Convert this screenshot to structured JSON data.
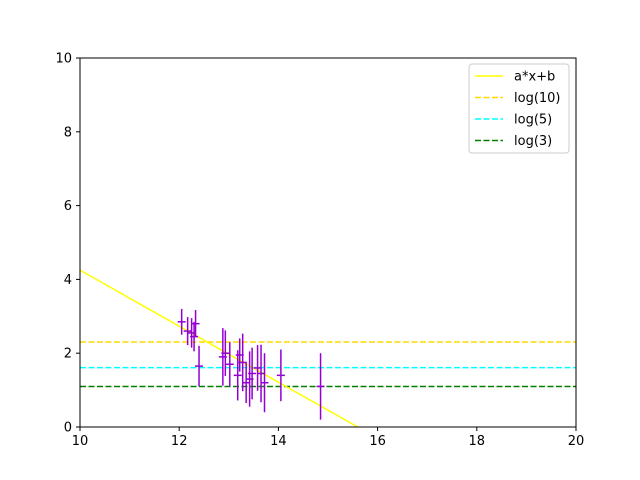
{
  "chart_data": {
    "type": "scatter",
    "xlim": [
      10,
      20
    ],
    "ylim": [
      0,
      10
    ],
    "x_ticks": [
      "10",
      "12",
      "14",
      "16",
      "18",
      "20"
    ],
    "y_ticks": [
      "0",
      "2",
      "4",
      "6",
      "8",
      "10"
    ],
    "grid": false,
    "legend_position": "top-right",
    "fit_line": {
      "name": "a*x+b",
      "color": "#ffff00",
      "x": [
        10.0,
        15.6
      ],
      "y": [
        4.25,
        0.0
      ]
    },
    "hlines": [
      {
        "name": "log(10)",
        "value": 2.3026,
        "color": "#ffd700",
        "style": "dashed"
      },
      {
        "name": "log(5)",
        "value": 1.6094,
        "color": "#00ffff",
        "style": "dashed"
      },
      {
        "name": "log(3)",
        "value": 1.0986,
        "color": "#008000",
        "style": "dashed"
      }
    ],
    "points": {
      "color": "#9400d3",
      "data": [
        {
          "x": 12.05,
          "y": 2.85,
          "err": 0.35
        },
        {
          "x": 12.17,
          "y": 2.6,
          "err": 0.38
        },
        {
          "x": 12.25,
          "y": 2.55,
          "err": 0.4
        },
        {
          "x": 12.3,
          "y": 2.45,
          "err": 0.4
        },
        {
          "x": 12.33,
          "y": 2.8,
          "err": 0.37
        },
        {
          "x": 12.4,
          "y": 1.65,
          "err": 0.55
        },
        {
          "x": 12.88,
          "y": 1.9,
          "err": 0.78
        },
        {
          "x": 12.93,
          "y": 2.0,
          "err": 0.62
        },
        {
          "x": 13.02,
          "y": 1.7,
          "err": 0.6
        },
        {
          "x": 13.18,
          "y": 1.4,
          "err": 0.68
        },
        {
          "x": 13.22,
          "y": 1.95,
          "err": 0.45
        },
        {
          "x": 13.28,
          "y": 1.75,
          "err": 0.78
        },
        {
          "x": 13.35,
          "y": 1.2,
          "err": 0.55
        },
        {
          "x": 13.42,
          "y": 1.3,
          "err": 0.75
        },
        {
          "x": 13.47,
          "y": 1.45,
          "err": 0.7
        },
        {
          "x": 13.58,
          "y": 1.6,
          "err": 0.62
        },
        {
          "x": 13.65,
          "y": 1.45,
          "err": 0.78
        },
        {
          "x": 13.72,
          "y": 1.2,
          "err": 0.8
        },
        {
          "x": 14.05,
          "y": 1.4,
          "err": 0.7
        },
        {
          "x": 14.85,
          "y": 1.1,
          "err": 0.9
        }
      ]
    }
  }
}
